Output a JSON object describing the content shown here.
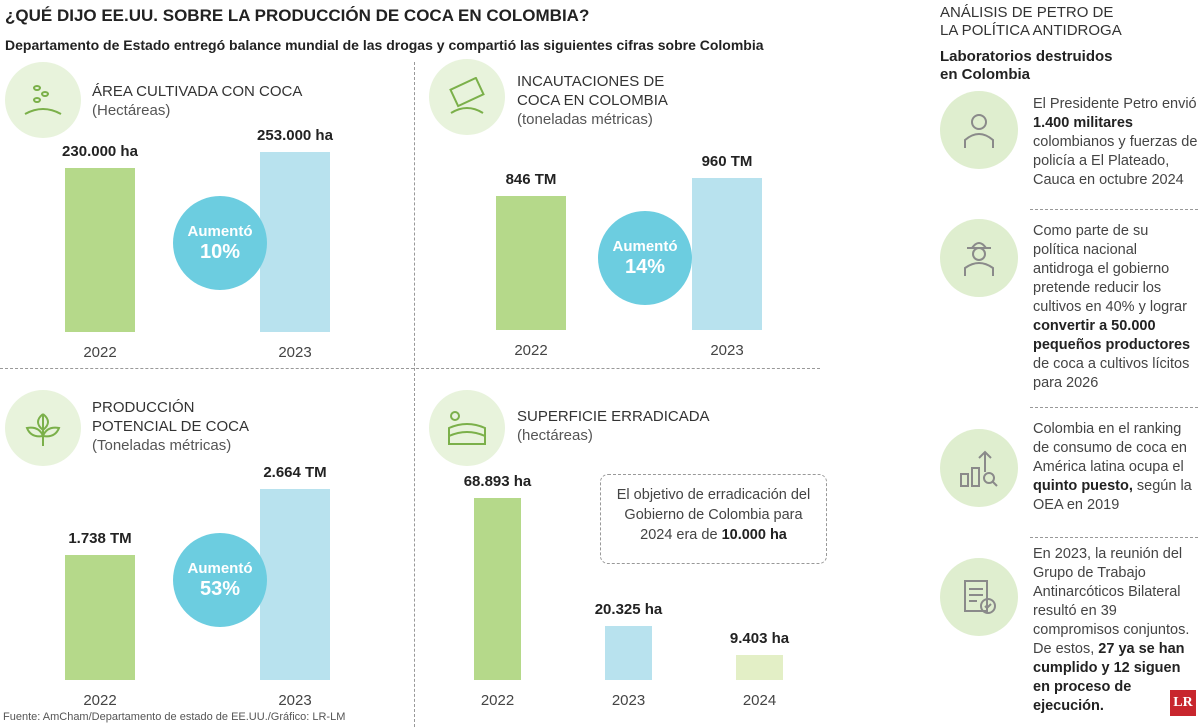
{
  "title": "¿QUÉ DIJO EE.UU. SOBRE LA PRODUCCIÓN DE COCA EN COLOMBIA?",
  "subtitle": "Departamento de Estado entregó balance mundial de las drogas y compartió las siguientes cifras sobre Colombia",
  "chart_data": [
    {
      "type": "bar",
      "title": "ÁREA CULTIVADA CON COCA",
      "subtitle": "(Hectáreas)",
      "categories": [
        "2022",
        "2023"
      ],
      "values": [
        230000,
        253000
      ],
      "value_labels": [
        "230.000 ha",
        "253.000 ha"
      ],
      "colors": [
        "#b5d98a",
        "#b8e2ee"
      ],
      "annotation": [
        "Aumentó",
        "10%"
      ]
    },
    {
      "type": "bar",
      "title": "INCAUTACIONES DE COCA EN COLOMBIA",
      "subtitle": "(toneladas métricas)",
      "categories": [
        "2022",
        "2023"
      ],
      "values": [
        846,
        960
      ],
      "value_labels": [
        "846 TM",
        "960 TM"
      ],
      "colors": [
        "#b5d98a",
        "#b8e2ee"
      ],
      "annotation": [
        "Aumentó",
        "14%"
      ]
    },
    {
      "type": "bar",
      "title": "PRODUCCIÓN POTENCIAL DE COCA",
      "subtitle": "(Toneladas métricas)",
      "categories": [
        "2022",
        "2023"
      ],
      "values": [
        1738,
        2664
      ],
      "value_labels": [
        "1.738 TM",
        "2.664 TM"
      ],
      "colors": [
        "#b5d98a",
        "#b8e2ee"
      ],
      "annotation": [
        "Aumentó",
        "53%"
      ]
    },
    {
      "type": "bar",
      "title": "SUPERFICIE ERRADICADA",
      "subtitle": "(hectáreas)",
      "categories": [
        "2022",
        "2023",
        "2024"
      ],
      "values": [
        68893,
        20325,
        9403
      ],
      "value_labels": [
        "68.893 ha",
        "20.325 ha",
        "9.403 ha"
      ],
      "colors": [
        "#b5d98a",
        "#b8e2ee",
        "#e3efc6"
      ],
      "note": [
        {
          "text": "El objetivo de erradicación del Gobierno de Colombia para 2024 era de "
        },
        {
          "text": "10.000 ha",
          "bold": true
        }
      ]
    }
  ],
  "sidebar": {
    "title": "ANÁLISIS DE PETRO DE LA POLÍTICA ANTIDROGA",
    "subtitle": "Laboratorios destruidos en Colombia",
    "items": [
      [
        {
          "text": "El Presidente Petro envió "
        },
        {
          "text": "1.400 militares",
          "bold": true
        },
        {
          "text": " colombianos y fuerzas de policía a El Plateado, Cauca en octubre 2024"
        }
      ],
      [
        {
          "text": "Como parte de su política nacional antidroga el gobierno pretende reducir los cultivos en 40%  y lograr "
        },
        {
          "text": "convertir a 50.000 pequeños productores",
          "bold": true
        },
        {
          "text": " de coca a cultivos lícitos para 2026"
        }
      ],
      [
        {
          "text": "Colombia en el ranking de consumo de coca en América latina ocupa el "
        },
        {
          "text": "quinto puesto,",
          "bold": true
        },
        {
          "text": " según la OEA en 2019"
        }
      ],
      [
        {
          "text": "En 2023, la reunión del Grupo de Trabajo Antinarcóticos Bilateral resultó en 39 compromisos conjuntos. De estos, "
        },
        {
          "text": "27 ya se han cumplido y 12 siguen en proceso de ejecución.",
          "bold": true
        }
      ]
    ]
  },
  "source": "Fuente: AmCham/Departamento de estado de EE.UU./Gráfico: LR-LM",
  "logo": "LR"
}
